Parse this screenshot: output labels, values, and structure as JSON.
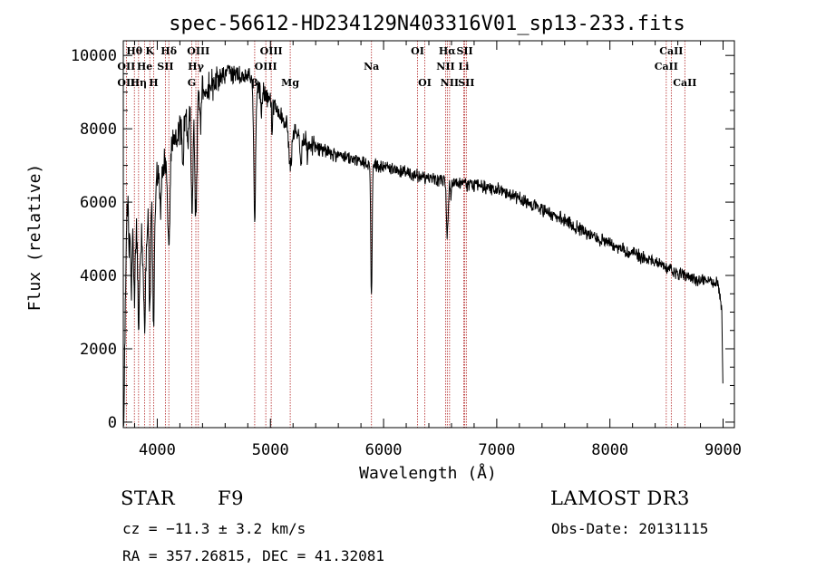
{
  "chart_data": {
    "type": "line",
    "title": "spec-56612-HD234129N403316V01_sp13-233.fits",
    "xlabel": "Wavelength (Å)",
    "ylabel": "Flux (relative)",
    "xlim": [
      3700,
      9100
    ],
    "ylim": [
      -150,
      10400
    ],
    "x_ticks": [
      4000,
      5000,
      6000,
      7000,
      8000,
      9000
    ],
    "y_ticks": [
      0,
      2000,
      4000,
      6000,
      8000,
      10000
    ],
    "line_color": "#000000",
    "marker_color": "#b22222",
    "continuum_anchors": [
      [
        3705,
        2500
      ],
      [
        3740,
        6600
      ],
      [
        3800,
        5800
      ],
      [
        3850,
        4900
      ],
      [
        3900,
        5600
      ],
      [
        3950,
        6200
      ],
      [
        4000,
        6700
      ],
      [
        4100,
        7300
      ],
      [
        4200,
        8000
      ],
      [
        4300,
        8600
      ],
      [
        4400,
        9000
      ],
      [
        4500,
        9300
      ],
      [
        4600,
        9500
      ],
      [
        4700,
        9500
      ],
      [
        4800,
        9400
      ],
      [
        4900,
        9100
      ],
      [
        5000,
        8800
      ],
      [
        5100,
        8300
      ],
      [
        5200,
        7900
      ],
      [
        5400,
        7500
      ],
      [
        5600,
        7250
      ],
      [
        5800,
        7100
      ],
      [
        6000,
        6950
      ],
      [
        6200,
        6800
      ],
      [
        6400,
        6650
      ],
      [
        6600,
        6550
      ],
      [
        6800,
        6450
      ],
      [
        7000,
        6350
      ],
      [
        7200,
        6100
      ],
      [
        7400,
        5800
      ],
      [
        7600,
        5500
      ],
      [
        7800,
        5150
      ],
      [
        8000,
        4850
      ],
      [
        8200,
        4600
      ],
      [
        8400,
        4350
      ],
      [
        8600,
        4050
      ],
      [
        8800,
        3850
      ],
      [
        8950,
        3850
      ],
      [
        8990,
        3000
      ],
      [
        9000,
        500
      ]
    ],
    "absorption_features": [
      [
        3706,
        8,
        2200
      ],
      [
        3750,
        6,
        1500
      ],
      [
        3770,
        8,
        2500
      ],
      [
        3798,
        8,
        2300
      ],
      [
        3835,
        8,
        2400
      ],
      [
        3889,
        10,
        2800
      ],
      [
        3934,
        7,
        3000
      ],
      [
        3968,
        8,
        3600
      ],
      [
        4030,
        6,
        1000
      ],
      [
        4101,
        10,
        2600
      ],
      [
        4226,
        5,
        1200
      ],
      [
        4271,
        5,
        900
      ],
      [
        4307,
        7,
        3000
      ],
      [
        4341,
        9,
        3200
      ],
      [
        4383,
        5,
        1000
      ],
      [
        4861,
        8,
        3700
      ],
      [
        4920,
        5,
        700
      ],
      [
        5015,
        5,
        700
      ],
      [
        5175,
        12,
        1100
      ],
      [
        5270,
        6,
        700
      ],
      [
        5328,
        5,
        500
      ],
      [
        5890,
        5,
        2300
      ],
      [
        5896,
        5,
        2000
      ],
      [
        6563,
        8,
        1500
      ],
      [
        6595,
        4,
        400
      ]
    ],
    "noise_amplitude": 280,
    "noise_seed": 56612,
    "spectral_lines": [
      {
        "name": "Hθ",
        "x": 3798,
        "row": 0
      },
      {
        "name": "K",
        "x": 3934,
        "row": 0
      },
      {
        "name": "Hδ",
        "x": 4102,
        "row": 0
      },
      {
        "name": "OIII",
        "x": 4363,
        "row": 0
      },
      {
        "name": "OIII",
        "x": 5007,
        "row": 0
      },
      {
        "name": "OI",
        "x": 6300,
        "row": 0
      },
      {
        "name": "Hα",
        "x": 6563,
        "row": 0
      },
      {
        "name": "SII",
        "x": 6717,
        "row": 0
      },
      {
        "name": "CaII",
        "x": 8542,
        "row": 0
      },
      {
        "name": "OII",
        "x": 3727,
        "row": 1
      },
      {
        "name": "He",
        "x": 3889,
        "row": 1
      },
      {
        "name": "SII",
        "x": 4072,
        "row": 1
      },
      {
        "name": "Hγ",
        "x": 4341,
        "row": 1
      },
      {
        "name": "OIII",
        "x": 4959,
        "row": 1
      },
      {
        "name": "Na",
        "x": 5893,
        "row": 1
      },
      {
        "name": "NII",
        "x": 6548,
        "row": 1
      },
      {
        "name": "Li",
        "x": 6708,
        "row": 1
      },
      {
        "name": "CaII",
        "x": 8498,
        "row": 1
      },
      {
        "name": "OII",
        "x": 3727,
        "row": 2
      },
      {
        "name": "Hη",
        "x": 3835,
        "row": 2
      },
      {
        "name": "H",
        "x": 3968,
        "row": 2
      },
      {
        "name": "G",
        "x": 4305,
        "row": 2
      },
      {
        "name": "β",
        "x": 4861,
        "row": 2
      },
      {
        "name": "Mg",
        "x": 5175,
        "row": 2
      },
      {
        "name": "OI",
        "x": 6364,
        "row": 2
      },
      {
        "name": "NII",
        "x": 6583,
        "row": 2
      },
      {
        "name": "SII",
        "x": 6731,
        "row": 2
      },
      {
        "name": "CaII",
        "x": 8662,
        "row": 2
      }
    ]
  },
  "info": {
    "object_class": "STAR",
    "subclass": "F9",
    "survey": "LAMOST DR3",
    "redshift": "cz = −11.3 ± 3.2 km/s",
    "obs_date": "Obs-Date: 20131115",
    "coords": "RA = 357.26815, DEC =  41.32081"
  }
}
